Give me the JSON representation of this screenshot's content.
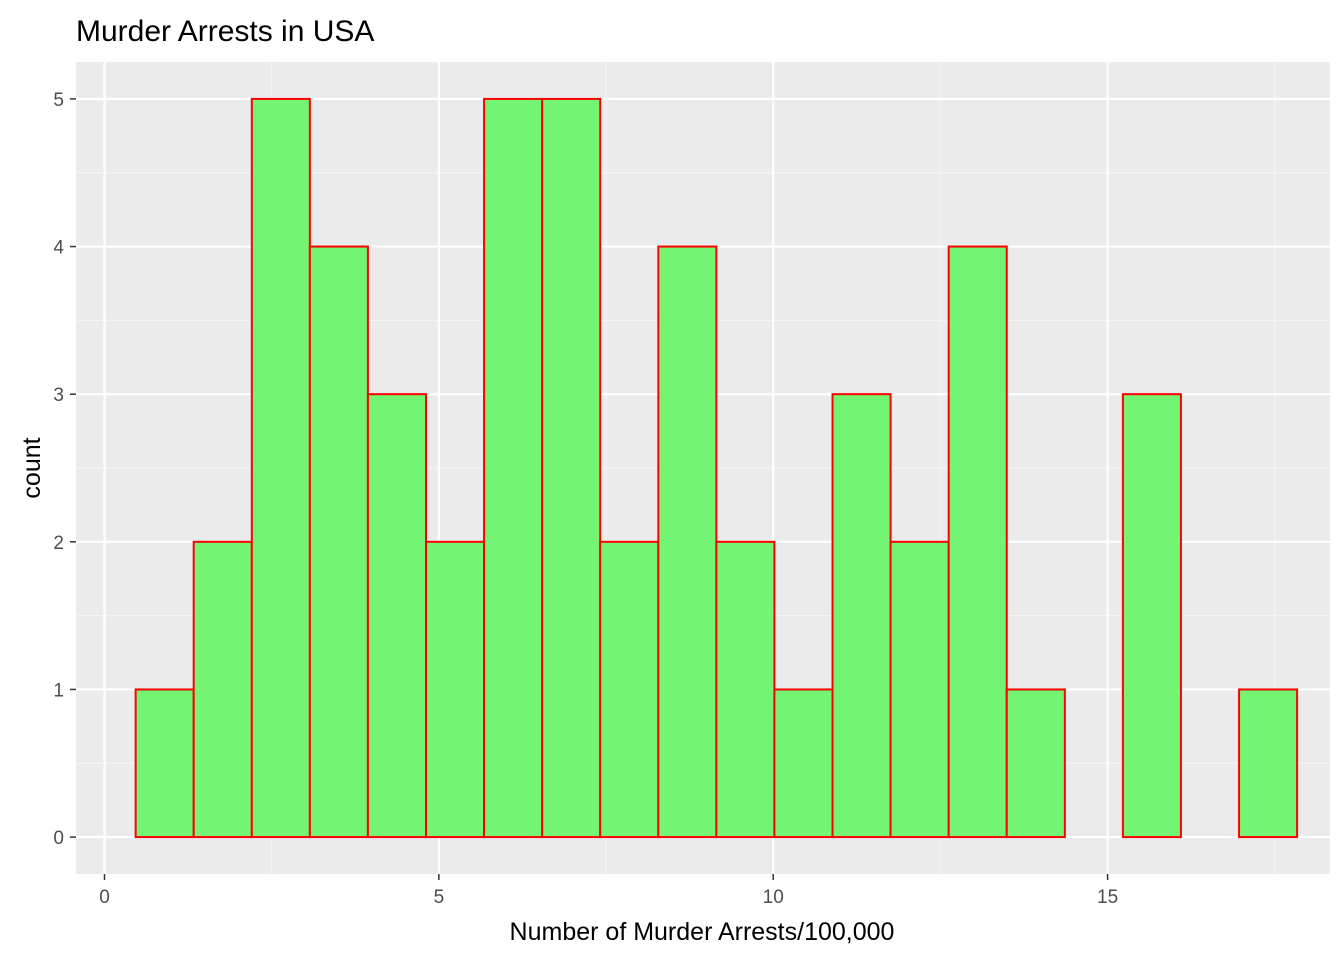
{
  "chart_data": {
    "type": "bar",
    "title": "Murder Arrests in USA",
    "xlabel": "Number of Murder Arrests/100,000",
    "ylabel": "count",
    "bin_width": 0.8684,
    "bins": [
      {
        "start": 0.466,
        "end": 1.334,
        "count": 1
      },
      {
        "start": 1.334,
        "end": 2.203,
        "count": 2
      },
      {
        "start": 2.203,
        "end": 3.071,
        "count": 5
      },
      {
        "start": 3.071,
        "end": 3.939,
        "count": 4
      },
      {
        "start": 3.939,
        "end": 4.808,
        "count": 3
      },
      {
        "start": 4.808,
        "end": 5.676,
        "count": 2
      },
      {
        "start": 5.676,
        "end": 6.545,
        "count": 5
      },
      {
        "start": 6.545,
        "end": 7.413,
        "count": 5
      },
      {
        "start": 7.413,
        "end": 8.282,
        "count": 2
      },
      {
        "start": 8.282,
        "end": 9.15,
        "count": 4
      },
      {
        "start": 9.15,
        "end": 10.018,
        "count": 2
      },
      {
        "start": 10.018,
        "end": 10.887,
        "count": 1
      },
      {
        "start": 10.887,
        "end": 11.755,
        "count": 3
      },
      {
        "start": 11.755,
        "end": 12.624,
        "count": 2
      },
      {
        "start": 12.624,
        "end": 13.492,
        "count": 4
      },
      {
        "start": 13.492,
        "end": 14.361,
        "count": 1
      },
      {
        "start": 14.361,
        "end": 15.229,
        "count": 0
      },
      {
        "start": 15.229,
        "end": 16.097,
        "count": 3
      },
      {
        "start": 16.097,
        "end": 16.966,
        "count": 0
      },
      {
        "start": 16.966,
        "end": 17.834,
        "count": 1
      }
    ],
    "xlim": [
      -0.426,
      18.326
    ],
    "ylim": [
      -0.25,
      5.25
    ],
    "x_ticks": [
      0,
      5,
      10,
      15
    ],
    "x_tick_labels": [
      "0",
      "5",
      "10",
      "15"
    ],
    "y_ticks": [
      0,
      1,
      2,
      3,
      4,
      5
    ],
    "y_tick_labels": [
      "0",
      "1",
      "2",
      "3",
      "4",
      "5"
    ],
    "x_minor_ticks": [
      2.5,
      7.5,
      12.5,
      17.5
    ],
    "y_minor_ticks": [
      0.5,
      1.5,
      2.5,
      3.5,
      4.5
    ],
    "grid": true,
    "legend": "none",
    "colors": {
      "bar_fill": "#73f573",
      "bar_outline": "#ff0000",
      "panel_background": "#ebebeb",
      "grid_major": "#ffffff",
      "grid_minor": "#f5f5f5",
      "tick_label": "#4d4d4d",
      "tick_mark": "#333333",
      "text": "#000000"
    }
  }
}
